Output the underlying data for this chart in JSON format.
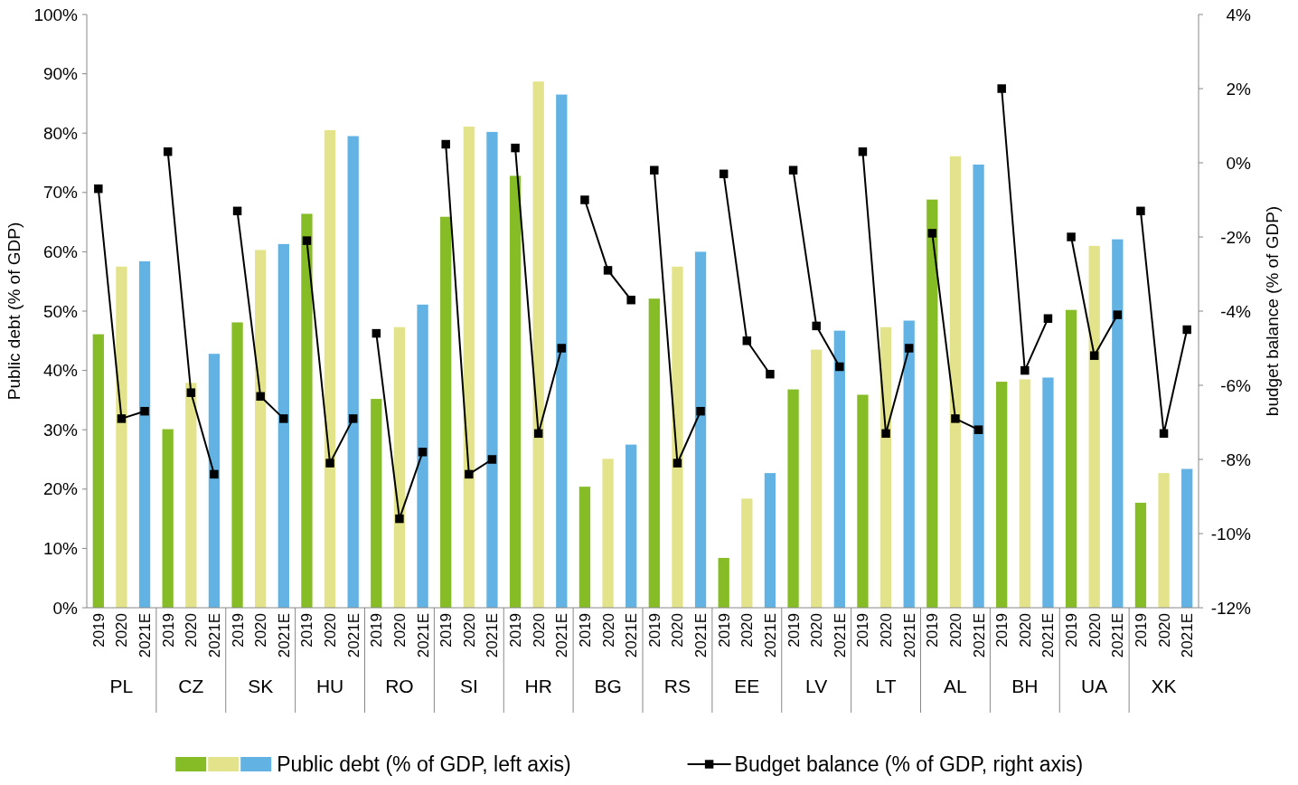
{
  "chart_data": {
    "type": "bar",
    "categories": [
      "2019",
      "2020",
      "2021E",
      "2019",
      "2020",
      "2021E",
      "2019",
      "2020",
      "2021E",
      "2019",
      "2020",
      "2021E",
      "2019",
      "2020",
      "2021E",
      "2019",
      "2020",
      "2021E",
      "2019",
      "2020",
      "2021E",
      "2019",
      "2020",
      "2021E",
      "2019",
      "2020",
      "2021E",
      "2019",
      "2020",
      "2021E",
      "2019",
      "2020",
      "2021E",
      "2019",
      "2020",
      "2021E",
      "2019",
      "2020",
      "2021E",
      "2019",
      "2020",
      "2021E",
      "2019",
      "2020",
      "2021E",
      "2019",
      "2020",
      "2021E"
    ],
    "annotations": [
      "PL",
      "CZ",
      "SK",
      "HU",
      "RO",
      "SI",
      "HR",
      "BG",
      "RS",
      "EE",
      "LV",
      "LT",
      "AL",
      "BH",
      "UA",
      "XK"
    ],
    "ylabel": "Public debt (% of GDP)",
    "y2label": "budget balance (% of GDP)",
    "ylim": [
      0,
      100
    ],
    "yticks": [
      {
        "value": 0,
        "label": "0%"
      },
      {
        "value": 10,
        "label": "10%"
      },
      {
        "value": 20,
        "label": "20%"
      },
      {
        "value": 30,
        "label": "30%"
      },
      {
        "value": 40,
        "label": "40%"
      },
      {
        "value": 50,
        "label": "50%"
      },
      {
        "value": 60,
        "label": "60%"
      },
      {
        "value": 70,
        "label": "70%"
      },
      {
        "value": 80,
        "label": "80%"
      },
      {
        "value": 90,
        "label": "90%"
      },
      {
        "value": 100,
        "label": "100%"
      }
    ],
    "y2lim": [
      -12,
      4
    ],
    "y2ticks": [
      {
        "value": -12,
        "label": "-12%"
      },
      {
        "value": -10,
        "label": "-10%"
      },
      {
        "value": -8,
        "label": "-8%"
      },
      {
        "value": -6,
        "label": "-6%"
      },
      {
        "value": -4,
        "label": "-4%"
      },
      {
        "value": -2,
        "label": "-2%"
      },
      {
        "value": 0,
        "label": "0%"
      },
      {
        "value": 2,
        "label": "2%"
      },
      {
        "value": 4,
        "label": "4%"
      }
    ],
    "legend": "bottom",
    "grid": false,
    "series": [
      {
        "name": "Public debt  (% of GDP, left axis)",
        "colors": [
          "#86bc25",
          "#e3e38c",
          "#62b3e3",
          "#86bc25",
          "#e3e38c",
          "#62b3e3",
          "#86bc25",
          "#e3e38c",
          "#62b3e3",
          "#86bc25",
          "#e3e38c",
          "#62b3e3",
          "#86bc25",
          "#e3e38c",
          "#62b3e3",
          "#86bc25",
          "#e3e38c",
          "#62b3e3",
          "#86bc25",
          "#e3e38c",
          "#62b3e3",
          "#86bc25",
          "#e3e38c",
          "#62b3e3",
          "#86bc25",
          "#e3e38c",
          "#62b3e3",
          "#86bc25",
          "#e3e38c",
          "#62b3e3",
          "#86bc25",
          "#e3e38c",
          "#62b3e3",
          "#86bc25",
          "#e3e38c",
          "#62b3e3",
          "#86bc25",
          "#e3e38c",
          "#62b3e3",
          "#86bc25",
          "#e3e38c",
          "#62b3e3",
          "#86bc25",
          "#e3e38c",
          "#62b3e3",
          "#86bc25",
          "#e3e38c",
          "#62b3e3"
        ],
        "values": [
          46.1,
          57.5,
          58.4,
          30.1,
          37.9,
          42.8,
          48.1,
          60.3,
          61.3,
          66.4,
          80.5,
          79.5,
          35.2,
          47.3,
          51.1,
          65.9,
          81.1,
          80.2,
          72.8,
          88.7,
          86.5,
          20.4,
          25.1,
          27.5,
          52.1,
          57.5,
          60.0,
          8.4,
          18.4,
          22.7,
          36.8,
          43.5,
          46.7,
          35.9,
          47.3,
          48.4,
          68.8,
          76.1,
          74.7,
          38.1,
          38.5,
          38.8,
          50.2,
          61.0,
          62.1,
          17.7,
          22.7,
          23.4
        ]
      },
      {
        "name": "Budget balance (% of GDP, right axis)",
        "type": "line",
        "axis": "y2",
        "color": "#000000",
        "marker": "square",
        "values": [
          -0.7,
          -6.9,
          -6.7,
          null,
          null,
          null,
          null,
          null,
          null,
          null,
          null,
          null,
          null,
          null,
          null,
          null,
          null,
          null,
          null,
          null,
          null,
          null,
          null,
          null,
          null,
          null,
          null,
          null,
          null,
          null,
          null,
          null,
          null,
          null,
          null,
          null,
          null,
          null,
          null,
          null,
          null,
          null,
          null,
          null,
          null,
          null,
          null,
          null
        ]
      },
      {
        "type": "line",
        "axis": "y2",
        "color": "#000000",
        "marker": "square",
        "values": [
          null,
          null,
          null,
          0.3,
          -6.2,
          -8.4,
          null,
          null,
          null,
          null,
          null,
          null,
          null,
          null,
          null,
          null,
          null,
          null,
          null,
          null,
          null,
          null,
          null,
          null,
          null,
          null,
          null,
          null,
          null,
          null,
          null,
          null,
          null,
          null,
          null,
          null,
          null,
          null,
          null,
          null,
          null,
          null,
          null,
          null,
          null,
          null,
          null,
          null
        ]
      },
      {
        "type": "line",
        "axis": "y2",
        "color": "#000000",
        "marker": "square",
        "values": [
          null,
          null,
          null,
          null,
          null,
          null,
          -1.3,
          -6.3,
          -6.9,
          null,
          null,
          null,
          null,
          null,
          null,
          null,
          null,
          null,
          null,
          null,
          null,
          null,
          null,
          null,
          null,
          null,
          null,
          null,
          null,
          null,
          null,
          null,
          null,
          null,
          null,
          null,
          null,
          null,
          null,
          null,
          null,
          null,
          null,
          null,
          null,
          null,
          null,
          null
        ]
      },
      {
        "type": "line",
        "axis": "y2",
        "color": "#000000",
        "marker": "square",
        "values": [
          null,
          null,
          null,
          null,
          null,
          null,
          null,
          null,
          null,
          -2.1,
          -8.1,
          -6.9,
          null,
          null,
          null,
          null,
          null,
          null,
          null,
          null,
          null,
          null,
          null,
          null,
          null,
          null,
          null,
          null,
          null,
          null,
          null,
          null,
          null,
          null,
          null,
          null,
          null,
          null,
          null,
          null,
          null,
          null,
          null,
          null,
          null,
          null,
          null,
          null
        ]
      },
      {
        "type": "line",
        "axis": "y2",
        "color": "#000000",
        "marker": "square",
        "values": [
          null,
          null,
          null,
          null,
          null,
          null,
          null,
          null,
          null,
          null,
          null,
          null,
          -4.6,
          -9.6,
          -7.8,
          null,
          null,
          null,
          null,
          null,
          null,
          null,
          null,
          null,
          null,
          null,
          null,
          null,
          null,
          null,
          null,
          null,
          null,
          null,
          null,
          null,
          null,
          null,
          null,
          null,
          null,
          null,
          null,
          null,
          null,
          null,
          null,
          null
        ]
      },
      {
        "type": "line",
        "axis": "y2",
        "color": "#000000",
        "marker": "square",
        "values": [
          null,
          null,
          null,
          null,
          null,
          null,
          null,
          null,
          null,
          null,
          null,
          null,
          null,
          null,
          null,
          0.5,
          -8.4,
          -8.0,
          null,
          null,
          null,
          null,
          null,
          null,
          null,
          null,
          null,
          null,
          null,
          null,
          null,
          null,
          null,
          null,
          null,
          null,
          null,
          null,
          null,
          null,
          null,
          null,
          null,
          null,
          null,
          null,
          null,
          null
        ]
      },
      {
        "type": "line",
        "axis": "y2",
        "color": "#000000",
        "marker": "square",
        "values": [
          null,
          null,
          null,
          null,
          null,
          null,
          null,
          null,
          null,
          null,
          null,
          null,
          null,
          null,
          null,
          null,
          null,
          null,
          0.4,
          -7.3,
          -5.0,
          null,
          null,
          null,
          null,
          null,
          null,
          null,
          null,
          null,
          null,
          null,
          null,
          null,
          null,
          null,
          null,
          null,
          null,
          null,
          null,
          null,
          null,
          null,
          null,
          null,
          null,
          null
        ]
      },
      {
        "type": "line",
        "axis": "y2",
        "color": "#000000",
        "marker": "square",
        "values": [
          null,
          null,
          null,
          null,
          null,
          null,
          null,
          null,
          null,
          null,
          null,
          null,
          null,
          null,
          null,
          null,
          null,
          null,
          null,
          null,
          null,
          -1.0,
          -2.9,
          -3.7,
          null,
          null,
          null,
          null,
          null,
          null,
          null,
          null,
          null,
          null,
          null,
          null,
          null,
          null,
          null,
          null,
          null,
          null,
          null,
          null,
          null,
          null,
          null,
          null
        ]
      },
      {
        "type": "line",
        "axis": "y2",
        "color": "#000000",
        "marker": "square",
        "values": [
          null,
          null,
          null,
          null,
          null,
          null,
          null,
          null,
          null,
          null,
          null,
          null,
          null,
          null,
          null,
          null,
          null,
          null,
          null,
          null,
          null,
          null,
          null,
          null,
          -0.2,
          -8.1,
          -6.7,
          null,
          null,
          null,
          null,
          null,
          null,
          null,
          null,
          null,
          null,
          null,
          null,
          null,
          null,
          null,
          null,
          null,
          null,
          null,
          null,
          null
        ]
      },
      {
        "type": "line",
        "axis": "y2",
        "color": "#000000",
        "marker": "square",
        "values": [
          null,
          null,
          null,
          null,
          null,
          null,
          null,
          null,
          null,
          null,
          null,
          null,
          null,
          null,
          null,
          null,
          null,
          null,
          null,
          null,
          null,
          null,
          null,
          null,
          null,
          null,
          null,
          -0.3,
          -4.8,
          -5.7,
          null,
          null,
          null,
          null,
          null,
          null,
          null,
          null,
          null,
          null,
          null,
          null,
          null,
          null,
          null,
          null,
          null,
          null
        ]
      },
      {
        "type": "line",
        "axis": "y2",
        "color": "#000000",
        "marker": "square",
        "values": [
          null,
          null,
          null,
          null,
          null,
          null,
          null,
          null,
          null,
          null,
          null,
          null,
          null,
          null,
          null,
          null,
          null,
          null,
          null,
          null,
          null,
          null,
          null,
          null,
          null,
          null,
          null,
          null,
          null,
          null,
          -0.2,
          -4.4,
          -5.5,
          null,
          null,
          null,
          null,
          null,
          null,
          null,
          null,
          null,
          null,
          null,
          null,
          null,
          null,
          null
        ]
      },
      {
        "type": "line",
        "axis": "y2",
        "color": "#000000",
        "marker": "square",
        "values": [
          null,
          null,
          null,
          null,
          null,
          null,
          null,
          null,
          null,
          null,
          null,
          null,
          null,
          null,
          null,
          null,
          null,
          null,
          null,
          null,
          null,
          null,
          null,
          null,
          null,
          null,
          null,
          null,
          null,
          null,
          null,
          null,
          null,
          0.3,
          -7.3,
          -5.0,
          null,
          null,
          null,
          null,
          null,
          null,
          null,
          null,
          null,
          null,
          null,
          null
        ]
      },
      {
        "type": "line",
        "axis": "y2",
        "color": "#000000",
        "marker": "square",
        "values": [
          null,
          null,
          null,
          null,
          null,
          null,
          null,
          null,
          null,
          null,
          null,
          null,
          null,
          null,
          null,
          null,
          null,
          null,
          null,
          null,
          null,
          null,
          null,
          null,
          null,
          null,
          null,
          null,
          null,
          null,
          null,
          null,
          null,
          null,
          null,
          null,
          -1.9,
          -6.9,
          -7.2,
          null,
          null,
          null,
          null,
          null,
          null,
          null,
          null,
          null
        ]
      },
      {
        "type": "line",
        "axis": "y2",
        "color": "#000000",
        "marker": "square",
        "values": [
          null,
          null,
          null,
          null,
          null,
          null,
          null,
          null,
          null,
          null,
          null,
          null,
          null,
          null,
          null,
          null,
          null,
          null,
          null,
          null,
          null,
          null,
          null,
          null,
          null,
          null,
          null,
          null,
          null,
          null,
          null,
          null,
          null,
          null,
          null,
          null,
          null,
          null,
          null,
          2.0,
          -5.6,
          -4.2,
          null,
          null,
          null,
          null,
          null,
          null
        ]
      },
      {
        "type": "line",
        "axis": "y2",
        "color": "#000000",
        "marker": "square",
        "values": [
          null,
          null,
          null,
          null,
          null,
          null,
          null,
          null,
          null,
          null,
          null,
          null,
          null,
          null,
          null,
          null,
          null,
          null,
          null,
          null,
          null,
          null,
          null,
          null,
          null,
          null,
          null,
          null,
          null,
          null,
          null,
          null,
          null,
          null,
          null,
          null,
          null,
          null,
          null,
          null,
          null,
          null,
          -2.0,
          -5.2,
          -4.1,
          null,
          null,
          null
        ]
      },
      {
        "type": "line",
        "axis": "y2",
        "color": "#000000",
        "marker": "square",
        "values": [
          null,
          null,
          null,
          null,
          null,
          null,
          null,
          null,
          null,
          null,
          null,
          null,
          null,
          null,
          null,
          null,
          null,
          null,
          null,
          null,
          null,
          null,
          null,
          null,
          null,
          null,
          null,
          null,
          null,
          null,
          null,
          null,
          null,
          null,
          null,
          null,
          null,
          null,
          null,
          null,
          null,
          null,
          null,
          null,
          null,
          -1.3,
          -7.3,
          -4.5
        ]
      }
    ]
  }
}
